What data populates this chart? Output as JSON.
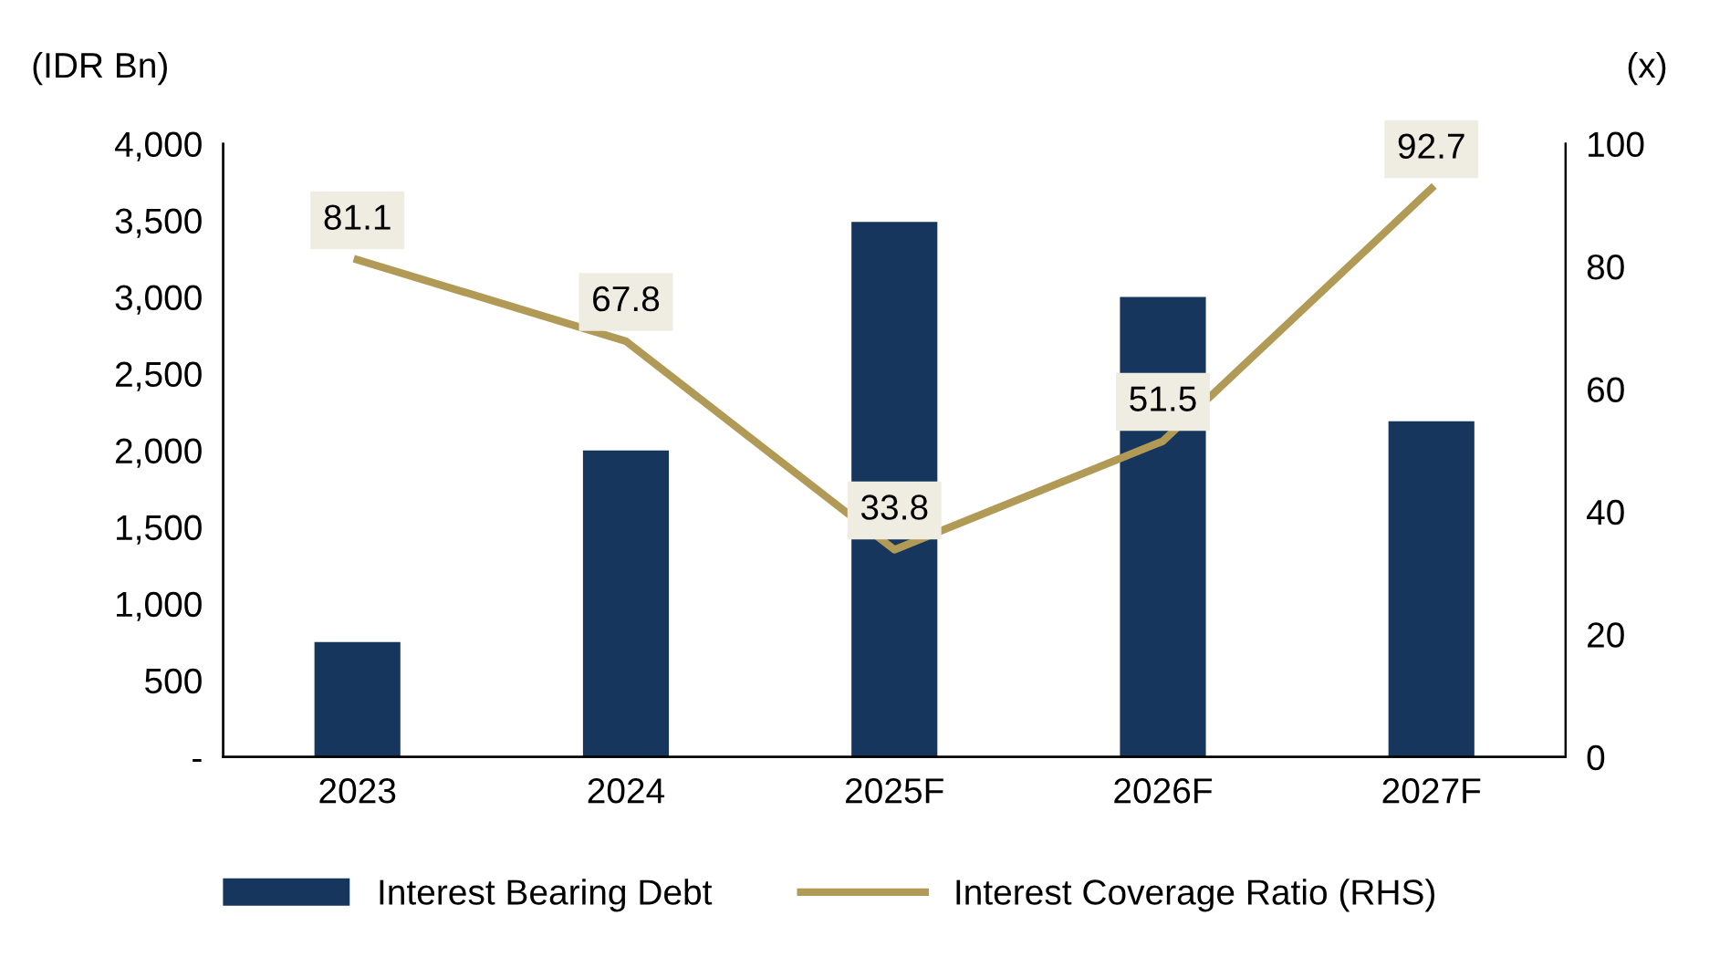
{
  "chart_data": {
    "type": "bar",
    "categories": [
      "2023",
      "2024",
      "2025F",
      "2026F",
      "2027F"
    ],
    "ylabel": "(IDR Bn)",
    "y2label": "(x)",
    "ylim": [
      0,
      4000
    ],
    "yticks": [
      {
        "value": 0,
        "label": "-"
      },
      {
        "value": 500,
        "label": "500"
      },
      {
        "value": 1000,
        "label": "1,000"
      },
      {
        "value": 1500,
        "label": "1,500"
      },
      {
        "value": 2000,
        "label": "2,000"
      },
      {
        "value": 2500,
        "label": "2,500"
      },
      {
        "value": 3000,
        "label": "3,000"
      },
      {
        "value": 3500,
        "label": "3,500"
      },
      {
        "value": 4000,
        "label": "4,000"
      }
    ],
    "y2lim": [
      0,
      100
    ],
    "y2ticks": [
      0,
      20,
      40,
      60,
      80,
      100
    ],
    "series": [
      {
        "name": "Interest Bearing Debt",
        "color": "#17365d",
        "values": [
          750,
          2000,
          3490,
          3000,
          2190
        ]
      },
      {
        "name": "Interest Coverage Ratio (RHS)",
        "type": "line",
        "axis": "y2",
        "color": "#b19a55",
        "values": [
          81.1,
          67.8,
          33.8,
          51.5,
          92.7
        ],
        "value_labels": [
          "81.1",
          "67.8",
          "33.8",
          "51.5",
          "92.7"
        ]
      }
    ],
    "legend": "bottom",
    "grid": false,
    "line_style": "solid"
  }
}
